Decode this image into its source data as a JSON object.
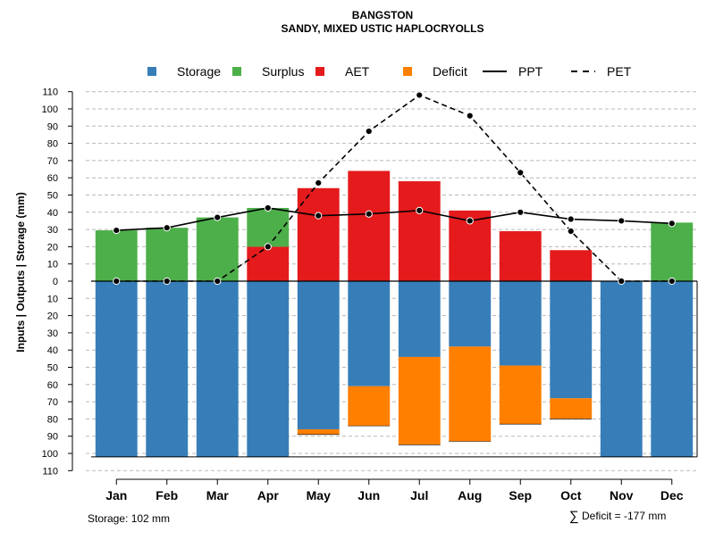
{
  "chart_data": {
    "type": "bar",
    "title": "BANGSTON",
    "subtitle": "SANDY, MIXED USTIC HAPLOCRYOLLS",
    "ylabel": "Inputs | Outputs | Storage   (mm)",
    "xlabel": "",
    "ylim": [
      -110,
      110
    ],
    "y_ticks": [
      110,
      100,
      90,
      80,
      70,
      60,
      50,
      40,
      30,
      20,
      10,
      0,
      -10,
      -20,
      -30,
      -40,
      -50,
      -60,
      -70,
      -80,
      -90,
      -100,
      -110
    ],
    "y_tick_labels": [
      "110",
      "100",
      "90",
      "80",
      "70",
      "60",
      "50",
      "40",
      "30",
      "20",
      "10",
      "0",
      "10",
      "20",
      "30",
      "40",
      "50",
      "60",
      "70",
      "80",
      "90",
      "100",
      "110"
    ],
    "grid": true,
    "legend_position": "top",
    "categories": [
      "Jan",
      "Feb",
      "Mar",
      "Apr",
      "May",
      "Jun",
      "Jul",
      "Aug",
      "Sep",
      "Oct",
      "Nov",
      "Dec"
    ],
    "legend": [
      {
        "name": "Storage",
        "kind": "box",
        "color": "#377EB8"
      },
      {
        "name": "Surplus",
        "kind": "box",
        "color": "#4DAF4A"
      },
      {
        "name": "AET",
        "kind": "box",
        "color": "#E41A1C"
      },
      {
        "name": "Deficit",
        "kind": "box",
        "color": "#FF7F00"
      },
      {
        "name": "PPT",
        "kind": "solid"
      },
      {
        "name": "PET",
        "kind": "dashed"
      }
    ],
    "series": [
      {
        "name": "Surplus",
        "color": "#4DAF4A",
        "base": [
          0,
          0,
          0,
          20,
          0,
          0,
          0,
          0,
          0,
          0,
          0,
          0
        ],
        "values": [
          29.5,
          31,
          37,
          22.5,
          0,
          0,
          0,
          0,
          0,
          0,
          0,
          34
        ]
      },
      {
        "name": "AET",
        "color": "#E41A1C",
        "base": [
          0,
          0,
          0,
          0,
          0,
          0,
          0,
          0,
          0,
          0,
          0,
          0
        ],
        "values": [
          0,
          0,
          0,
          20,
          54,
          64,
          58,
          41,
          29,
          18,
          0,
          0
        ]
      },
      {
        "name": "Storage",
        "color": "#377EB8",
        "values": [
          -102,
          -102,
          -102,
          -102,
          -86,
          -61,
          -44,
          -38,
          -49,
          -68,
          -102,
          -102
        ]
      },
      {
        "name": "Deficit",
        "color": "#FF7F00",
        "top": [
          0,
          0,
          0,
          0,
          -86,
          -61,
          -44,
          -38,
          -49,
          -68,
          0,
          0
        ],
        "bottom": [
          0,
          0,
          0,
          0,
          -89,
          -84,
          -95,
          -93,
          -83,
          -80,
          0,
          0
        ]
      },
      {
        "name": "PPT",
        "color": "#000000",
        "values": [
          29.5,
          31,
          37,
          42.5,
          38,
          39,
          41,
          35,
          40,
          36,
          35,
          33.5
        ]
      },
      {
        "name": "PET",
        "color": "#000000",
        "values": [
          0,
          0,
          0,
          20,
          57,
          87,
          108,
          96,
          63,
          29,
          0,
          0
        ]
      }
    ],
    "annotations": {
      "storage": "Storage: 102 mm",
      "deficit_symbol": "∑",
      "deficit": "Deficit = -177 mm"
    }
  }
}
